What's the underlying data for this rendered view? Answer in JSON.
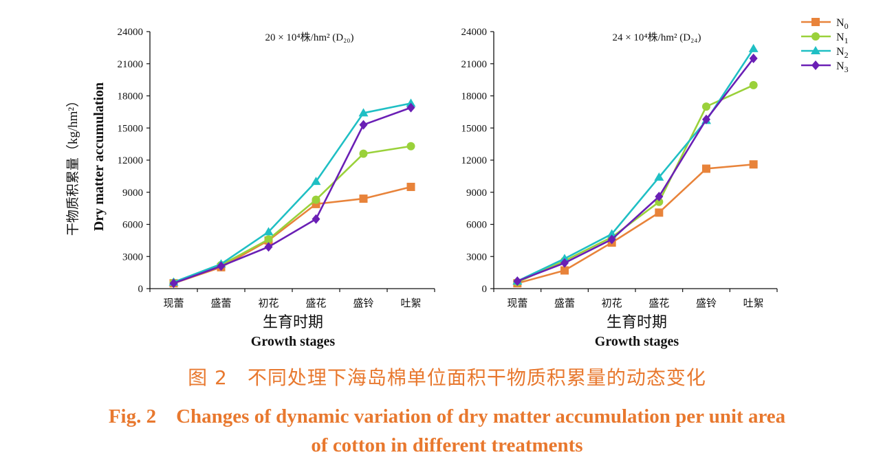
{
  "colors": {
    "N0": "#e8833a",
    "N1": "#9ad13a",
    "N2": "#1fbfc4",
    "N3": "#6a1fb5",
    "caption": "#e8782e"
  },
  "legend": [
    {
      "key": "N0",
      "sub": "0",
      "marker": "square"
    },
    {
      "key": "N1",
      "sub": "1",
      "marker": "circle"
    },
    {
      "key": "N2",
      "sub": "2",
      "marker": "triangle"
    },
    {
      "key": "N3",
      "sub": "3",
      "marker": "diamond"
    }
  ],
  "y_axis": {
    "label_en": "Dry matter accumulation",
    "label_cn": "干物质积累量（kg/hm²）"
  },
  "x_axis": {
    "label_cn": "生育时期",
    "label_en": "Growth stages"
  },
  "caption": {
    "cn": "图 2　不同处理下海岛棉单位面积干物质积累量的动态变化",
    "en_line1": "Fig. 2　Changes of dynamic variation of dry matter accumulation per unit area",
    "en_line2": "of cotton in different treatments"
  },
  "chart_data": [
    {
      "type": "line",
      "title": "20 × 10⁴株/hm²  (D₂₀)",
      "categories": [
        "现蕾",
        "盛蕾",
        "初花",
        "盛花",
        "盛铃",
        "吐絮"
      ],
      "ylim": [
        0,
        24000
      ],
      "yticks": [
        0,
        3000,
        6000,
        9000,
        12000,
        15000,
        18000,
        21000,
        24000
      ],
      "xlabel": "生育时期 Growth stages",
      "ylabel": "干物质积累量（kg/hm²） Dry matter accumulation",
      "grid": false,
      "legend_position": "top-right",
      "series": [
        {
          "name": "N0",
          "values": [
            500,
            2000,
            4500,
            7900,
            8400,
            9500
          ]
        },
        {
          "name": "N1",
          "values": [
            550,
            2200,
            4600,
            8300,
            12600,
            13300
          ]
        },
        {
          "name": "N2",
          "values": [
            600,
            2300,
            5300,
            10000,
            16400,
            17300
          ]
        },
        {
          "name": "N3",
          "values": [
            500,
            2100,
            3900,
            6500,
            15300,
            16900
          ]
        }
      ]
    },
    {
      "type": "line",
      "title": "24 × 10⁴株/hm²  (D₂₄)",
      "categories": [
        "现蕾",
        "盛蕾",
        "初花",
        "盛花",
        "盛铃",
        "吐絮"
      ],
      "ylim": [
        0,
        24000
      ],
      "yticks": [
        0,
        3000,
        6000,
        9000,
        12000,
        15000,
        18000,
        21000,
        24000
      ],
      "xlabel": "生育时期 Growth stages",
      "ylabel": "",
      "grid": false,
      "legend_position": "top-right",
      "series": [
        {
          "name": "N0",
          "values": [
            500,
            1700,
            4300,
            7100,
            11200,
            11600
          ]
        },
        {
          "name": "N1",
          "values": [
            600,
            2600,
            4800,
            8100,
            17000,
            19000
          ]
        },
        {
          "name": "N2",
          "values": [
            700,
            2800,
            5100,
            10400,
            15700,
            22400
          ]
        },
        {
          "name": "N3",
          "values": [
            700,
            2400,
            4600,
            8600,
            15800,
            21500
          ]
        }
      ]
    }
  ]
}
